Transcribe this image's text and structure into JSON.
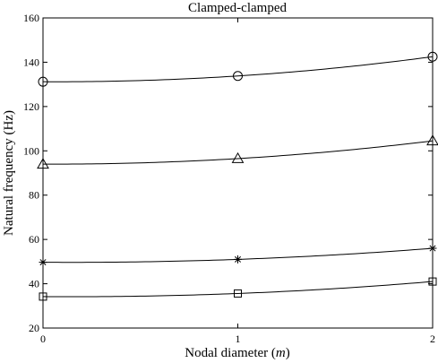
{
  "chart_data": {
    "type": "line",
    "title": "Clamped-clamped",
    "xlabel": "Nodal diameter (",
    "xlabel_var": "m",
    "xlabel_end": ")",
    "ylabel": "Natural frequency (Hz)",
    "x": [
      0,
      1,
      2
    ],
    "x_ticks": [
      "0",
      "1",
      "2"
    ],
    "y_ticks": [
      "20",
      "40",
      "60",
      "80",
      "100",
      "120",
      "140",
      "160"
    ],
    "xlim": [
      0,
      2
    ],
    "ylim": [
      20,
      160
    ],
    "grid": false,
    "series": [
      {
        "marker": "circle",
        "values": [
          131.2,
          133.8,
          142.5
        ]
      },
      {
        "marker": "triangle",
        "values": [
          94.0,
          96.5,
          104.5
        ]
      },
      {
        "marker": "asterisk",
        "values": [
          49.7,
          51.0,
          56.0
        ]
      },
      {
        "marker": "square",
        "values": [
          34.2,
          35.6,
          41.0
        ]
      }
    ],
    "line_color": "#000000"
  }
}
